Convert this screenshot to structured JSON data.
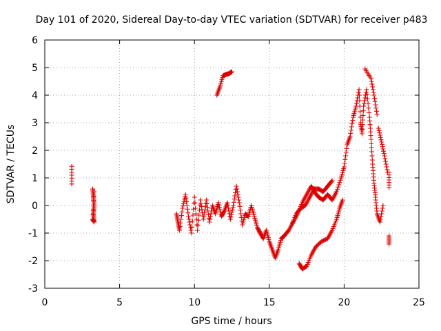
{
  "chart_data": {
    "type": "scatter",
    "title": "Day 101 of 2020, Sidereal Day-to-day VTEC variation (SDTVAR) for receiver p483",
    "xlabel": "GPS time / hours",
    "ylabel": "SDTVAR / TECUs",
    "xlim": [
      0,
      25
    ],
    "ylim": [
      -3,
      6
    ],
    "xticks": [
      0,
      5,
      10,
      15,
      20,
      25
    ],
    "yticks": [
      -3,
      -2,
      -1,
      0,
      1,
      2,
      3,
      4,
      5,
      6
    ],
    "grid": true,
    "marker": "+",
    "color": "#dd0000",
    "series": [
      {
        "name": "SDTVAR",
        "points": [
          [
            1.8,
            1.42
          ],
          [
            1.8,
            0.78
          ],
          [
            3.2,
            0.6
          ],
          [
            3.25,
            0.3
          ],
          [
            3.3,
            0.0
          ],
          [
            3.25,
            -0.3
          ],
          [
            3.3,
            -0.6
          ],
          [
            3.2,
            -0.5
          ],
          [
            3.3,
            0.5
          ],
          [
            8.8,
            -0.3
          ],
          [
            8.9,
            -0.6
          ],
          [
            9.0,
            -0.9
          ],
          [
            9.2,
            -0.1
          ],
          [
            9.4,
            0.4
          ],
          [
            9.6,
            -0.4
          ],
          [
            9.8,
            -1.0
          ],
          [
            10.0,
            0.3
          ],
          [
            10.2,
            -0.9
          ],
          [
            10.4,
            0.2
          ],
          [
            10.6,
            -0.5
          ],
          [
            10.8,
            0.2
          ],
          [
            11.0,
            -0.6
          ],
          [
            11.2,
            0.0
          ],
          [
            11.4,
            -0.3
          ],
          [
            11.6,
            0.1
          ],
          [
            11.8,
            -0.4
          ],
          [
            12.0,
            -0.2
          ],
          [
            12.2,
            0.1
          ],
          [
            12.4,
            -0.5
          ],
          [
            12.6,
            0.0
          ],
          [
            12.8,
            0.7
          ],
          [
            13.0,
            0.1
          ],
          [
            13.2,
            -0.7
          ],
          [
            13.4,
            -0.3
          ],
          [
            13.6,
            -0.4
          ],
          [
            13.8,
            0.0
          ],
          [
            14.0,
            -0.4
          ],
          [
            14.2,
            -0.8
          ],
          [
            14.4,
            -1.0
          ],
          [
            14.6,
            -1.2
          ],
          [
            14.8,
            -0.9
          ],
          [
            15.0,
            -1.3
          ],
          [
            15.2,
            -1.6
          ],
          [
            15.4,
            -1.9
          ],
          [
            15.6,
            -1.6
          ],
          [
            15.8,
            -1.2
          ],
          [
            16.0,
            -1.1
          ],
          [
            16.3,
            -0.9
          ],
          [
            16.6,
            -0.6
          ],
          [
            16.9,
            -0.3
          ],
          [
            17.2,
            0.1
          ],
          [
            17.5,
            0.4
          ],
          [
            17.8,
            0.7
          ],
          [
            18.0,
            0.5
          ],
          [
            18.3,
            0.3
          ],
          [
            18.6,
            0.2
          ],
          [
            18.9,
            0.4
          ],
          [
            19.2,
            0.2
          ],
          [
            19.5,
            0.5
          ],
          [
            19.8,
            1.0
          ],
          [
            20.0,
            1.4
          ],
          [
            20.2,
            2.2
          ],
          [
            20.4,
            2.5
          ],
          [
            20.6,
            3.2
          ],
          [
            20.8,
            3.6
          ],
          [
            21.0,
            4.2
          ],
          [
            21.1,
            3.0
          ],
          [
            21.2,
            2.6
          ],
          [
            21.3,
            3.6
          ],
          [
            21.5,
            4.2
          ],
          [
            21.7,
            3.2
          ],
          [
            21.8,
            2.4
          ],
          [
            21.9,
            1.5
          ],
          [
            22.0,
            0.8
          ],
          [
            22.1,
            0.3
          ],
          [
            22.2,
            -0.3
          ],
          [
            22.4,
            -0.6
          ],
          [
            22.6,
            0.0
          ],
          [
            22.3,
            2.8
          ],
          [
            22.5,
            2.3
          ],
          [
            22.7,
            1.8
          ],
          [
            22.9,
            1.2
          ],
          [
            21.4,
            4.95
          ],
          [
            21.8,
            4.6
          ],
          [
            22.0,
            4.0
          ],
          [
            22.2,
            3.3
          ],
          [
            17.0,
            -2.1
          ],
          [
            17.2,
            -2.3
          ],
          [
            17.5,
            -2.2
          ],
          [
            17.8,
            -1.8
          ],
          [
            18.1,
            -1.5
          ],
          [
            18.5,
            -1.3
          ],
          [
            18.9,
            -1.2
          ],
          [
            19.2,
            -0.9
          ],
          [
            19.5,
            -0.5
          ],
          [
            19.7,
            -0.1
          ],
          [
            19.9,
            0.2
          ],
          [
            16.5,
            -0.7
          ],
          [
            16.8,
            -0.3
          ],
          [
            17.1,
            -0.1
          ],
          [
            17.4,
            0.0
          ],
          [
            17.7,
            0.3
          ],
          [
            18.0,
            0.6
          ],
          [
            18.3,
            0.6
          ],
          [
            18.6,
            0.5
          ],
          [
            18.9,
            0.7
          ],
          [
            19.2,
            0.9
          ],
          [
            11.5,
            4.0
          ],
          [
            11.7,
            4.3
          ],
          [
            11.9,
            4.7
          ],
          [
            12.1,
            4.75
          ],
          [
            12.3,
            4.78
          ],
          [
            12.5,
            4.85
          ],
          [
            23.0,
            1.2
          ],
          [
            23.0,
            0.65
          ],
          [
            23.0,
            -1.1
          ],
          [
            23.0,
            -1.4
          ]
        ]
      }
    ]
  }
}
